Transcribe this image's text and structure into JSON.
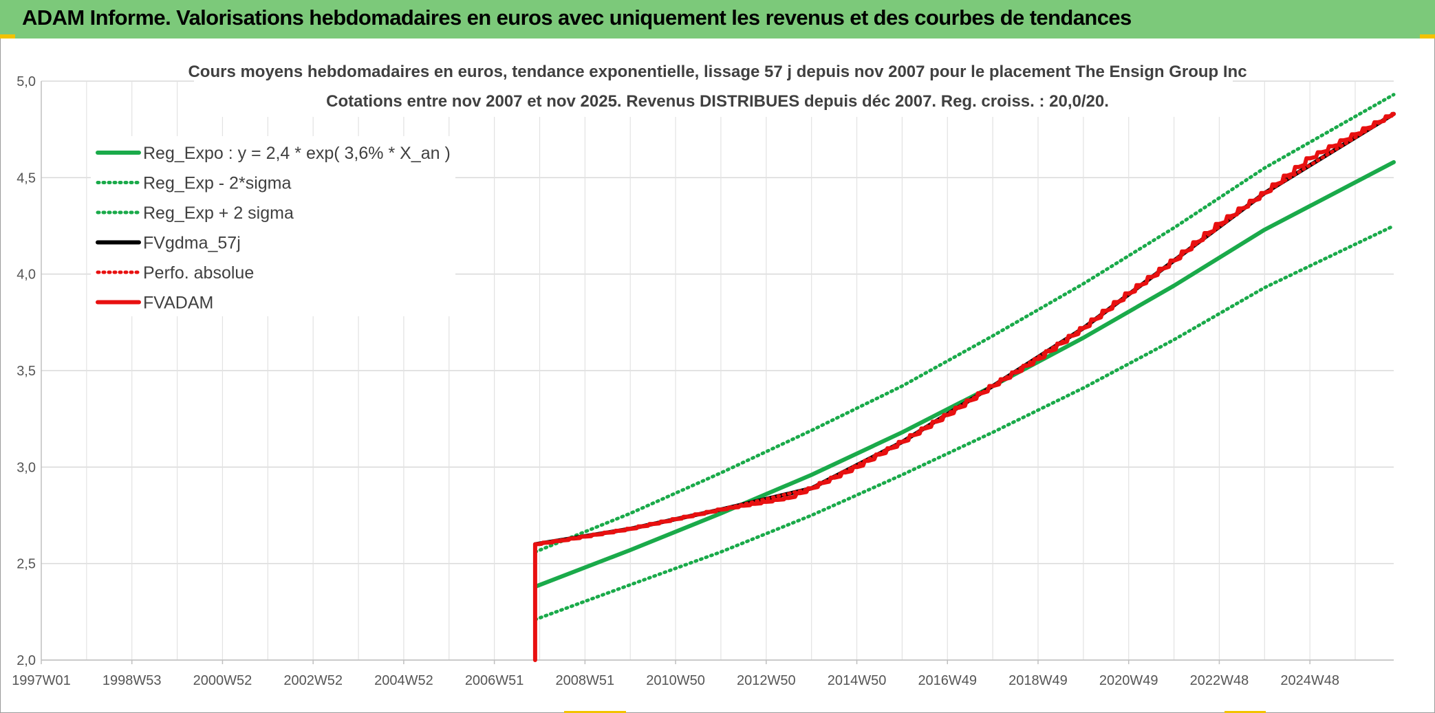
{
  "header": {
    "title": "ADAM Informe. Valorisations hebdomadaires en euros avec uniquement les revenus et des courbes de tendances"
  },
  "colors": {
    "header_bg": "#7cc97a",
    "accent": "#f2c200",
    "green": "#1aaa4a",
    "red": "#e81010",
    "black": "#000000"
  },
  "chart_data": {
    "type": "line",
    "title": "Cours moyens hebdomadaires en euros, tendance exponentielle, lissage 57 j depuis nov 2007 pour le placement The Ensign Group Inc",
    "subtitle": "Cotations entre nov 2007 et nov 2025. Revenus DISTRIBUES depuis déc 2007. Reg. croiss. : 20,0/20.",
    "x_tick_labels": [
      "1997W01",
      "1998W53",
      "2000W52",
      "2002W52",
      "2004W52",
      "2006W51",
      "2008W51",
      "2010W50",
      "2012W50",
      "2014W50",
      "2016W49",
      "2018W49",
      "2020W49",
      "2022W48",
      "2024W48"
    ],
    "x_ticks": [
      1997.0,
      1999.0,
      2001.0,
      2003.0,
      2005.0,
      2007.0,
      2009.0,
      2011.0,
      2013.0,
      2015.0,
      2017.0,
      2019.0,
      2021.0,
      2023.0,
      2025.0
    ],
    "xlim": [
      1997.0,
      2026.85
    ],
    "ylim": [
      2.0,
      5.0
    ],
    "y_ticks": [
      2.0,
      2.5,
      3.0,
      3.5,
      4.0,
      4.5,
      5.0
    ],
    "y_tick_labels": [
      "2,0",
      "2,5",
      "3,0",
      "3,5",
      "4,0",
      "4,5",
      "5,0"
    ],
    "grid": true,
    "legend_position": "top-left",
    "series": [
      {
        "name": "Reg_Expo : y = 2,4 * exp( 3,6% *  X_an )",
        "color": "#1aaa4a",
        "style": "solid",
        "x": [
          2007.9,
          2010.0,
          2012.0,
          2014.0,
          2016.0,
          2018.0,
          2020.0,
          2022.0,
          2024.0,
          2026.85
        ],
        "y": [
          2.38,
          2.57,
          2.76,
          2.96,
          3.18,
          3.42,
          3.67,
          3.94,
          4.23,
          4.58
        ]
      },
      {
        "name": "Reg_Exp - 2*sigma",
        "color": "#1aaa4a",
        "style": "dotted",
        "x": [
          2007.9,
          2010.0,
          2012.0,
          2014.0,
          2016.0,
          2018.0,
          2020.0,
          2022.0,
          2024.0,
          2026.85
        ],
        "y": [
          2.21,
          2.39,
          2.56,
          2.75,
          2.96,
          3.18,
          3.41,
          3.66,
          3.93,
          4.25
        ]
      },
      {
        "name": "Reg_Exp + 2 sigma",
        "color": "#1aaa4a",
        "style": "dotted",
        "x": [
          2007.9,
          2010.0,
          2012.0,
          2014.0,
          2016.0,
          2018.0,
          2020.0,
          2022.0,
          2024.0,
          2026.85
        ],
        "y": [
          2.56,
          2.76,
          2.97,
          3.19,
          3.42,
          3.68,
          3.95,
          4.24,
          4.55,
          4.93
        ]
      },
      {
        "name": "FVgdma_57j",
        "color": "#000000",
        "style": "solid",
        "x": [
          2007.9,
          2010.0,
          2012.0,
          2014.0,
          2016.0,
          2018.0,
          2020.0,
          2022.0,
          2024.0,
          2026.85
        ],
        "y": [
          2.6,
          2.68,
          2.78,
          2.89,
          3.13,
          3.42,
          3.72,
          4.07,
          4.42,
          4.83
        ]
      },
      {
        "name": "Perfo. absolue",
        "color": "#e81010",
        "style": "dotted",
        "x": [
          2007.9,
          2010.0,
          2012.0,
          2014.0,
          2016.0,
          2018.0,
          2020.0,
          2022.0,
          2024.0,
          2026.85
        ],
        "y": [
          2.6,
          2.68,
          2.78,
          2.89,
          3.13,
          3.42,
          3.72,
          4.07,
          4.42,
          4.83
        ]
      },
      {
        "name": "FVADAM",
        "color": "#e81010",
        "style": "solid",
        "x": [
          2007.9,
          2007.9,
          2008.5,
          2010.0,
          2012.0,
          2013.5,
          2014.0,
          2015.0,
          2016.0,
          2017.0,
          2018.0,
          2019.0,
          2020.0,
          2021.0,
          2022.0,
          2023.0,
          2024.0,
          2025.0,
          2026.85
        ],
        "y": [
          2.0,
          2.6,
          2.62,
          2.68,
          2.78,
          2.84,
          2.89,
          3.0,
          3.13,
          3.27,
          3.42,
          3.56,
          3.72,
          3.9,
          4.07,
          4.26,
          4.42,
          4.6,
          4.83
        ]
      }
    ]
  }
}
